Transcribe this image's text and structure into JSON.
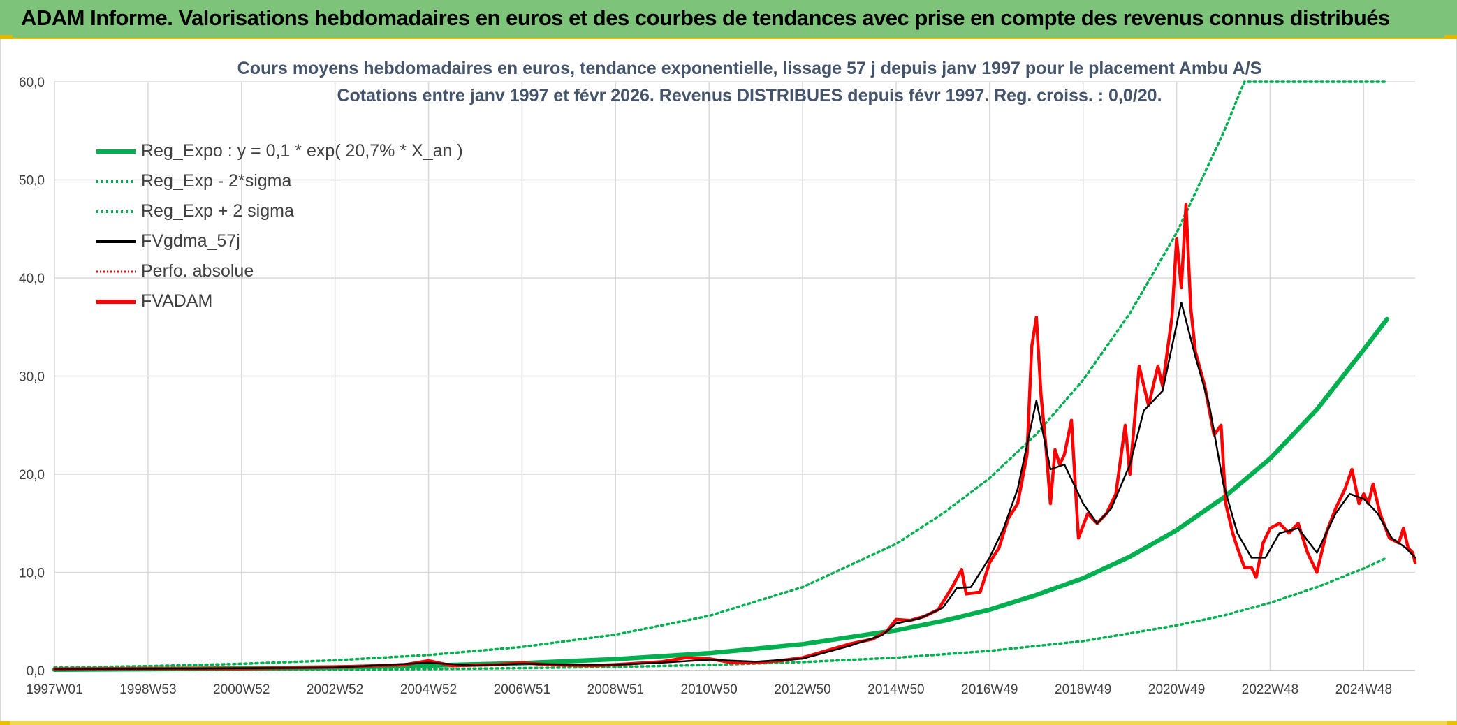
{
  "header": {
    "title": "ADAM Informe. Valorisations hebdomadaires en euros et des courbes de tendances avec prise en compte des revenus connus distribués"
  },
  "colors": {
    "header_bg": "#7dc37a",
    "reg_green": "#00b050",
    "fv_red": "#ff0000",
    "gdma_black": "#000000",
    "grid": "#d9d9d9",
    "title_text": "#44546a"
  },
  "chart_data": {
    "type": "line",
    "title_line1": "Cours moyens hebdomadaires en euros, tendance exponentielle, lissage 57 j depuis janv 1997 pour le placement Ambu A/S",
    "title_line2": "Cotations entre janv 1997 et févr 2026. Revenus DISTRIBUES depuis févr 1997. Reg. croiss. : 0,0/20.",
    "xlabel": "",
    "ylabel": "",
    "x_range": [
      1997.0,
      2026.1
    ],
    "ylim": [
      0,
      60
    ],
    "y_ticks": [
      "0,0",
      "10,0",
      "20,0",
      "30,0",
      "40,0",
      "50,0",
      "60,0"
    ],
    "x_ticks": [
      {
        "label": "1997W01",
        "x": 1997.0
      },
      {
        "label": "1998W53",
        "x": 1999.0
      },
      {
        "label": "2000W52",
        "x": 2001.0
      },
      {
        "label": "2002W52",
        "x": 2003.0
      },
      {
        "label": "2004W52",
        "x": 2005.0
      },
      {
        "label": "2006W51",
        "x": 2007.0
      },
      {
        "label": "2008W51",
        "x": 2009.0
      },
      {
        "label": "2010W50",
        "x": 2011.0
      },
      {
        "label": "2012W50",
        "x": 2013.0
      },
      {
        "label": "2014W50",
        "x": 2015.0
      },
      {
        "label": "2016W49",
        "x": 2017.0
      },
      {
        "label": "2018W49",
        "x": 2019.0
      },
      {
        "label": "2020W49",
        "x": 2021.0
      },
      {
        "label": "2022W48",
        "x": 2023.0
      },
      {
        "label": "2024W48",
        "x": 2025.0
      }
    ],
    "grid": true,
    "legend_position": "top-left",
    "series": [
      {
        "name": "Reg_Expo : y = 0,1 * exp( 20,7% *  X_an )",
        "style": "solid-thick",
        "color": "#00b050",
        "points": [
          [
            1997.0,
            0.09
          ],
          [
            1999.0,
            0.14
          ],
          [
            2001.0,
            0.21
          ],
          [
            2003.0,
            0.32
          ],
          [
            2005.0,
            0.5
          ],
          [
            2007.0,
            0.75
          ],
          [
            2009.0,
            1.16
          ],
          [
            2011.0,
            1.76
          ],
          [
            2013.0,
            2.68
          ],
          [
            2015.0,
            4.1
          ],
          [
            2016.0,
            5.05
          ],
          [
            2017.0,
            6.2
          ],
          [
            2018.0,
            7.7
          ],
          [
            2019.0,
            9.4
          ],
          [
            2020.0,
            11.6
          ],
          [
            2021.0,
            14.3
          ],
          [
            2022.0,
            17.6
          ],
          [
            2023.0,
            21.6
          ],
          [
            2024.0,
            26.6
          ],
          [
            2025.0,
            32.7
          ],
          [
            2025.5,
            35.8
          ]
        ]
      },
      {
        "name": "Reg_Exp - 2*sigma",
        "style": "dotted",
        "color": "#00b050",
        "points": [
          [
            1997.0,
            0.02
          ],
          [
            1999.0,
            0.04
          ],
          [
            2001.0,
            0.07
          ],
          [
            2003.0,
            0.1
          ],
          [
            2005.0,
            0.15
          ],
          [
            2007.0,
            0.24
          ],
          [
            2009.0,
            0.37
          ],
          [
            2011.0,
            0.56
          ],
          [
            2013.0,
            0.86
          ],
          [
            2015.0,
            1.3
          ],
          [
            2017.0,
            2.0
          ],
          [
            2019.0,
            3.0
          ],
          [
            2021.0,
            4.6
          ],
          [
            2022.0,
            5.6
          ],
          [
            2023.0,
            6.9
          ],
          [
            2024.0,
            8.5
          ],
          [
            2025.0,
            10.4
          ],
          [
            2025.5,
            11.5
          ]
        ]
      },
      {
        "name": "Reg_Exp + 2 sigma",
        "style": "dotted",
        "color": "#00b050",
        "points": [
          [
            1997.0,
            0.3
          ],
          [
            1999.0,
            0.45
          ],
          [
            2001.0,
            0.68
          ],
          [
            2003.0,
            1.04
          ],
          [
            2005.0,
            1.58
          ],
          [
            2007.0,
            2.4
          ],
          [
            2009.0,
            3.66
          ],
          [
            2011.0,
            5.57
          ],
          [
            2013.0,
            8.5
          ],
          [
            2015.0,
            12.9
          ],
          [
            2016.0,
            16.0
          ],
          [
            2017.0,
            19.6
          ],
          [
            2018.0,
            24.1
          ],
          [
            2019.0,
            29.6
          ],
          [
            2020.0,
            36.4
          ],
          [
            2021.0,
            44.6
          ],
          [
            2022.0,
            54.8
          ],
          [
            2022.45,
            60.0
          ],
          [
            2025.5,
            60.0
          ]
        ]
      },
      {
        "name": "FVgdma_57j",
        "style": "solid",
        "color": "#000000",
        "points": [
          [
            1997.0,
            0.15
          ],
          [
            2000.0,
            0.2
          ],
          [
            2003.0,
            0.3
          ],
          [
            2005.0,
            0.8
          ],
          [
            2006.0,
            0.5
          ],
          [
            2007.0,
            0.7
          ],
          [
            2008.0,
            0.6
          ],
          [
            2009.0,
            0.6
          ],
          [
            2010.0,
            0.8
          ],
          [
            2011.0,
            1.1
          ],
          [
            2012.0,
            0.9
          ],
          [
            2013.0,
            1.2
          ],
          [
            2014.0,
            2.5
          ],
          [
            2014.7,
            3.6
          ],
          [
            2015.0,
            4.8
          ],
          [
            2015.5,
            5.3
          ],
          [
            2016.0,
            6.4
          ],
          [
            2016.3,
            8.4
          ],
          [
            2016.6,
            8.5
          ],
          [
            2017.0,
            11.5
          ],
          [
            2017.3,
            14.5
          ],
          [
            2017.6,
            18.5
          ],
          [
            2018.0,
            27.5
          ],
          [
            2018.3,
            20.5
          ],
          [
            2018.6,
            21.0
          ],
          [
            2019.0,
            17.0
          ],
          [
            2019.3,
            15.0
          ],
          [
            2019.6,
            16.5
          ],
          [
            2020.0,
            21.0
          ],
          [
            2020.3,
            26.5
          ],
          [
            2020.7,
            28.5
          ],
          [
            2021.1,
            37.5
          ],
          [
            2021.4,
            32.0
          ],
          [
            2021.7,
            27.0
          ],
          [
            2022.0,
            19.0
          ],
          [
            2022.3,
            14.0
          ],
          [
            2022.6,
            11.5
          ],
          [
            2022.9,
            11.5
          ],
          [
            2023.2,
            14.0
          ],
          [
            2023.6,
            14.5
          ],
          [
            2024.0,
            12.0
          ],
          [
            2024.4,
            16.0
          ],
          [
            2024.7,
            18.0
          ],
          [
            2025.0,
            17.5
          ],
          [
            2025.3,
            16.0
          ],
          [
            2025.6,
            13.5
          ],
          [
            2025.9,
            12.5
          ],
          [
            2026.1,
            11.5
          ]
        ]
      },
      {
        "name": "Perfo. absolue",
        "style": "dotted",
        "color": "#ff0000",
        "points": []
      },
      {
        "name": "FVADAM",
        "style": "solid-thick",
        "color": "#ff0000",
        "points": [
          [
            1997.0,
            0.15
          ],
          [
            1999.0,
            0.2
          ],
          [
            2001.0,
            0.2
          ],
          [
            2003.0,
            0.35
          ],
          [
            2004.5,
            0.6
          ],
          [
            2005.0,
            1.0
          ],
          [
            2005.5,
            0.5
          ],
          [
            2006.5,
            0.6
          ],
          [
            2007.0,
            0.8
          ],
          [
            2007.5,
            0.6
          ],
          [
            2008.5,
            0.5
          ],
          [
            2009.0,
            0.6
          ],
          [
            2010.0,
            0.9
          ],
          [
            2010.5,
            1.3
          ],
          [
            2011.0,
            1.2
          ],
          [
            2011.5,
            0.8
          ],
          [
            2012.0,
            0.8
          ],
          [
            2012.5,
            1.0
          ],
          [
            2013.0,
            1.3
          ],
          [
            2013.5,
            2.0
          ],
          [
            2014.0,
            2.7
          ],
          [
            2014.5,
            3.2
          ],
          [
            2014.8,
            4.0
          ],
          [
            2015.0,
            5.2
          ],
          [
            2015.3,
            5.1
          ],
          [
            2015.6,
            5.5
          ],
          [
            2015.9,
            6.2
          ],
          [
            2016.2,
            8.5
          ],
          [
            2016.4,
            10.3
          ],
          [
            2016.5,
            7.8
          ],
          [
            2016.8,
            8.0
          ],
          [
            2017.0,
            11.0
          ],
          [
            2017.2,
            12.5
          ],
          [
            2017.4,
            15.5
          ],
          [
            2017.6,
            17.0
          ],
          [
            2017.8,
            22.0
          ],
          [
            2017.9,
            33.0
          ],
          [
            2018.0,
            36.0
          ],
          [
            2018.1,
            28.0
          ],
          [
            2018.2,
            23.0
          ],
          [
            2018.3,
            17.0
          ],
          [
            2018.4,
            22.5
          ],
          [
            2018.5,
            21.0
          ],
          [
            2018.6,
            22.0
          ],
          [
            2018.75,
            25.5
          ],
          [
            2018.9,
            13.5
          ],
          [
            2019.1,
            16.0
          ],
          [
            2019.3,
            15.0
          ],
          [
            2019.5,
            16.0
          ],
          [
            2019.7,
            18.0
          ],
          [
            2019.9,
            25.0
          ],
          [
            2020.0,
            20.0
          ],
          [
            2020.2,
            31.0
          ],
          [
            2020.4,
            27.0
          ],
          [
            2020.6,
            31.0
          ],
          [
            2020.7,
            29.0
          ],
          [
            2020.9,
            36.0
          ],
          [
            2021.0,
            44.0
          ],
          [
            2021.1,
            39.0
          ],
          [
            2021.2,
            47.5
          ],
          [
            2021.3,
            37.0
          ],
          [
            2021.4,
            32.5
          ],
          [
            2021.6,
            29.0
          ],
          [
            2021.8,
            24.0
          ],
          [
            2021.95,
            25.0
          ],
          [
            2022.05,
            17.0
          ],
          [
            2022.2,
            14.0
          ],
          [
            2022.3,
            12.5
          ],
          [
            2022.45,
            10.5
          ],
          [
            2022.6,
            10.5
          ],
          [
            2022.7,
            9.5
          ],
          [
            2022.85,
            13.0
          ],
          [
            2023.0,
            14.5
          ],
          [
            2023.2,
            15.0
          ],
          [
            2023.4,
            14.0
          ],
          [
            2023.6,
            15.0
          ],
          [
            2023.8,
            12.0
          ],
          [
            2024.0,
            10.0
          ],
          [
            2024.2,
            14.0
          ],
          [
            2024.4,
            16.5
          ],
          [
            2024.6,
            18.5
          ],
          [
            2024.75,
            20.5
          ],
          [
            2024.9,
            17.0
          ],
          [
            2025.0,
            18.0
          ],
          [
            2025.1,
            17.0
          ],
          [
            2025.2,
            19.0
          ],
          [
            2025.35,
            16.0
          ],
          [
            2025.55,
            13.5
          ],
          [
            2025.75,
            13.0
          ],
          [
            2025.85,
            14.5
          ],
          [
            2025.95,
            12.5
          ],
          [
            2026.05,
            12.0
          ],
          [
            2026.1,
            11.0
          ]
        ]
      }
    ]
  }
}
